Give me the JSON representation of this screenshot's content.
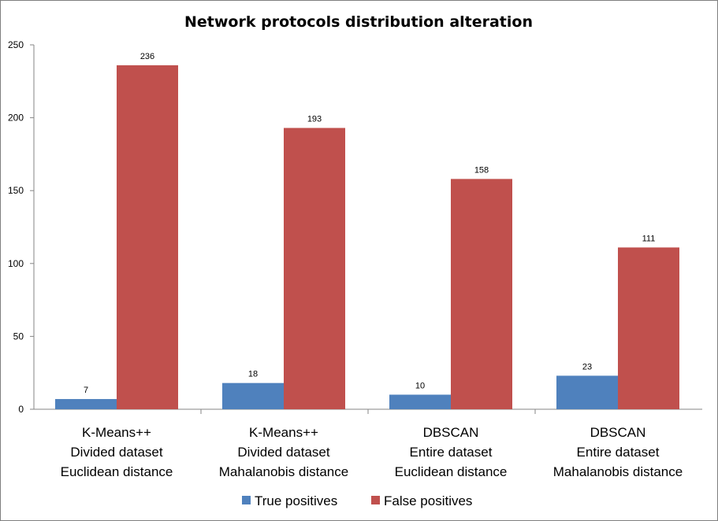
{
  "chart_data": {
    "type": "bar",
    "title": "Network protocols distribution alteration",
    "categories": [
      [
        "K-Means++",
        "Divided dataset",
        "Euclidean distance"
      ],
      [
        "K-Means++",
        "Divided dataset",
        "Mahalanobis distance"
      ],
      [
        "DBSCAN",
        "Entire dataset",
        "Euclidean distance"
      ],
      [
        "DBSCAN",
        "Entire dataset",
        "Mahalanobis distance"
      ]
    ],
    "series": [
      {
        "name": "True positives",
        "color": "#4f81bd",
        "values": [
          7,
          18,
          10,
          23
        ]
      },
      {
        "name": "False positives",
        "color": "#c0504d",
        "values": [
          236,
          193,
          158,
          111
        ]
      }
    ],
    "ylim": [
      0,
      250
    ],
    "yticks": [
      0,
      50,
      100,
      150,
      200,
      250
    ],
    "xlabel": "",
    "ylabel": "",
    "grid": false,
    "legend": "bottom"
  }
}
